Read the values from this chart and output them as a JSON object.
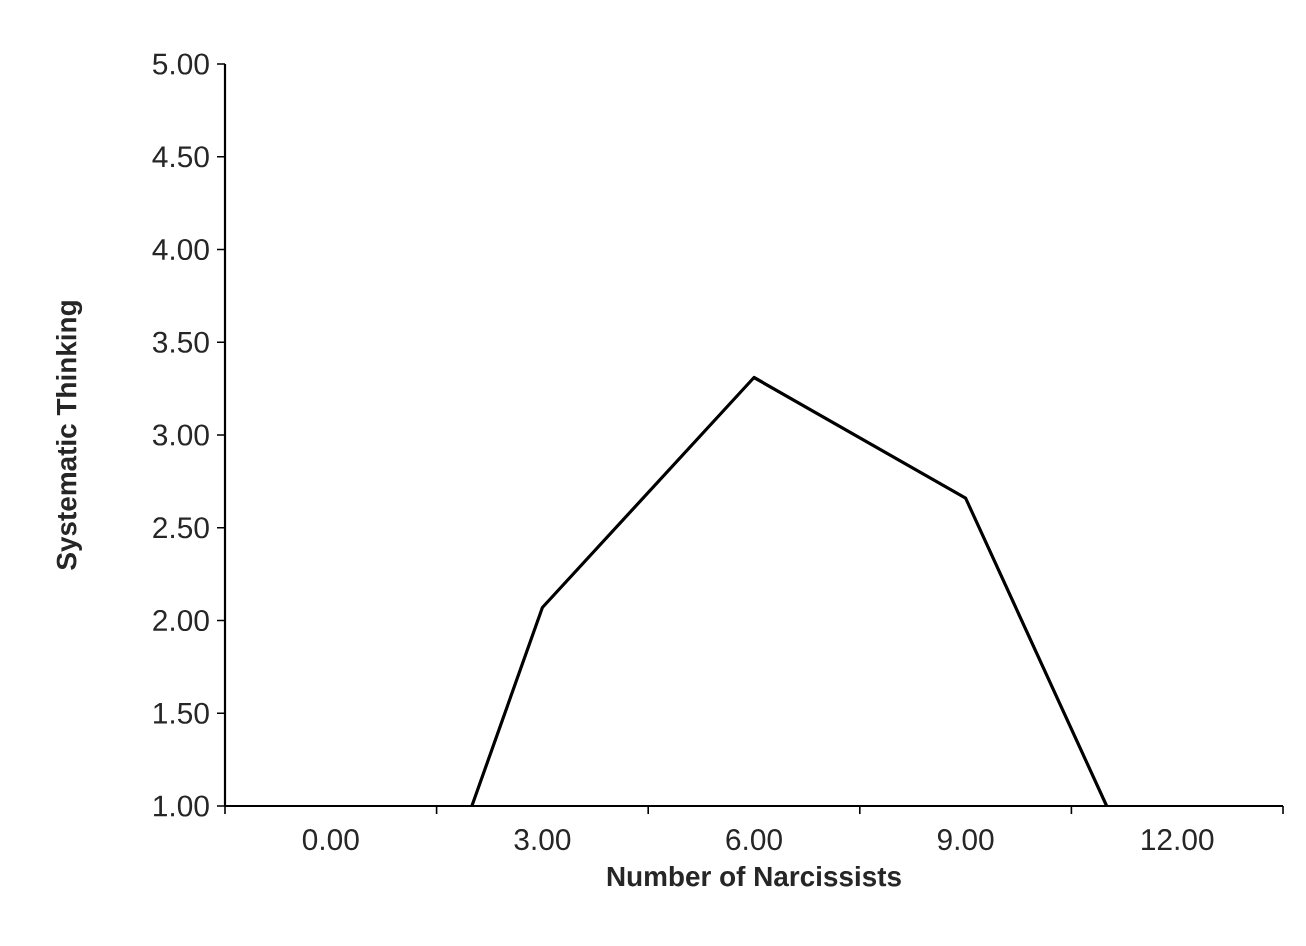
{
  "chart_data": {
    "type": "line",
    "xlabel": "Number of Narcissists",
    "ylabel": "Systematic Thinking",
    "x": [
      2,
      3,
      6,
      9,
      11
    ],
    "series": [
      {
        "color": "#000000",
        "values": [
          1.0,
          2.07,
          3.31,
          2.66,
          1.0
        ]
      }
    ],
    "xlim": [
      -1.5,
      13.5
    ],
    "xticks": [
      {
        "value": -1.5,
        "label": null
      },
      {
        "value": 0,
        "label": "0.00"
      },
      {
        "value": 1.5,
        "label": null
      },
      {
        "value": 3,
        "label": "3.00"
      },
      {
        "value": 4.5,
        "label": null
      },
      {
        "value": 6,
        "label": "6.00"
      },
      {
        "value": 7.5,
        "label": null
      },
      {
        "value": 9,
        "label": "9.00"
      },
      {
        "value": 10.5,
        "label": null
      },
      {
        "value": 12,
        "label": "12.00"
      },
      {
        "value": 13.5,
        "label": null
      }
    ],
    "ylim": [
      1,
      5
    ],
    "yticks": [
      {
        "value": 1,
        "label": "1.00"
      },
      {
        "value": 1.5,
        "label": "1.50"
      },
      {
        "value": 2,
        "label": "2.00"
      },
      {
        "value": 2.5,
        "label": "2.50"
      },
      {
        "value": 3,
        "label": "3.00"
      },
      {
        "value": 3.5,
        "label": "3.50"
      },
      {
        "value": 4,
        "label": "4.00"
      },
      {
        "value": 4.5,
        "label": "4.50"
      },
      {
        "value": 5,
        "label": "5.00"
      }
    ],
    "grid": false
  }
}
